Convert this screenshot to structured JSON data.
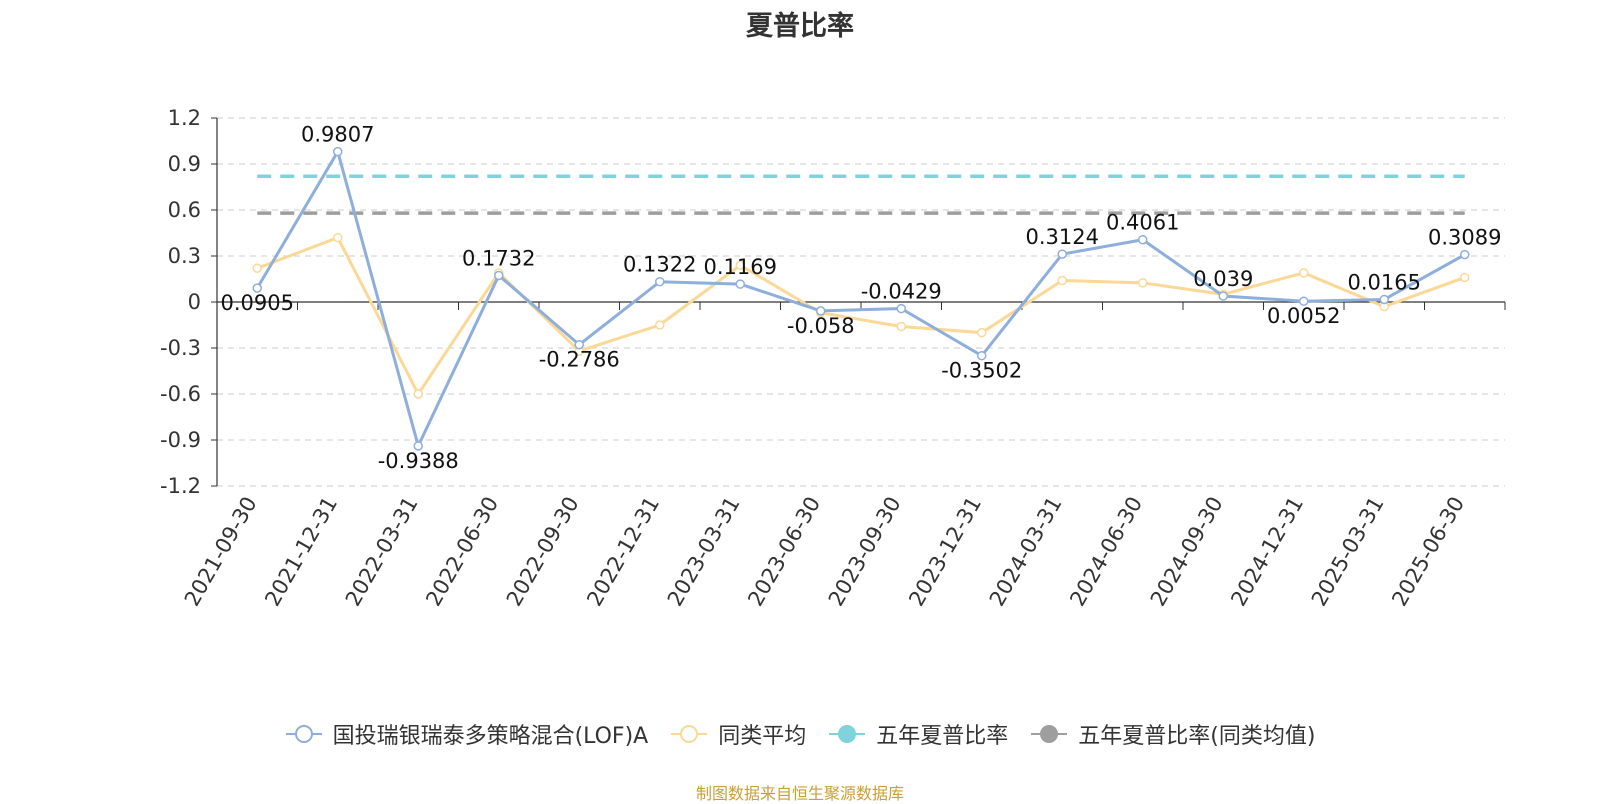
{
  "title": "夏普比率",
  "source_text": "制图数据来自恒生聚源数据库",
  "colors": {
    "fund": "#8eaedc",
    "avg": "#fbd896",
    "five_year": "#7fd3dc",
    "five_year_avg": "#9e9e9e",
    "source": "#c9a034"
  },
  "legend": [
    {
      "label": "国投瑞银瑞泰多策略混合(LOF)A",
      "color": "#8eaedc",
      "marker": "hollow-circle"
    },
    {
      "label": "同类平均",
      "color": "#fbd896",
      "marker": "hollow-circle"
    },
    {
      "label": "五年夏普比率",
      "color": "#7fd3dc",
      "marker": "filled-circle"
    },
    {
      "label": "五年夏普比率(同类均值)",
      "color": "#9e9e9e",
      "marker": "filled-circle"
    }
  ],
  "chart_data": {
    "type": "line",
    "title": "夏普比率",
    "categories": [
      "2021-09-30",
      "2021-12-31",
      "2022-03-31",
      "2022-06-30",
      "2022-09-30",
      "2022-12-31",
      "2023-03-31",
      "2023-06-30",
      "2023-09-30",
      "2023-12-31",
      "2024-03-31",
      "2024-06-30",
      "2024-09-30",
      "2024-12-31",
      "2025-03-31",
      "2025-06-30"
    ],
    "series": [
      {
        "name": "国投瑞银瑞泰多策略混合(LOF)A",
        "values": [
          0.0905,
          0.9807,
          -0.9388,
          0.1732,
          -0.2786,
          0.1322,
          0.1169,
          -0.058,
          -0.0429,
          -0.3502,
          0.3124,
          0.4061,
          0.039,
          0.0052,
          0.0165,
          0.3089
        ],
        "labels": [
          "0.0905",
          "0.9807",
          "-0.9388",
          "0.1732",
          "-0.2786",
          "0.1322",
          "0.1169",
          "-0.058",
          "-0.0429",
          "-0.3502",
          "0.3124",
          "0.4061",
          "0.039",
          "0.0052",
          "0.0165",
          "0.3089"
        ]
      },
      {
        "name": "同类平均",
        "values": [
          0.22,
          0.42,
          -0.6,
          0.19,
          -0.32,
          -0.15,
          0.24,
          -0.07,
          -0.16,
          -0.2,
          0.14,
          0.125,
          0.05,
          0.19,
          -0.03,
          0.16
        ]
      },
      {
        "name": "五年夏普比率",
        "values": [
          0.82,
          0.82,
          0.82,
          0.82,
          0.82,
          0.82,
          0.82,
          0.82,
          0.82,
          0.82,
          0.82,
          0.82,
          0.82,
          0.82,
          0.82,
          0.82
        ],
        "style": "dashed"
      },
      {
        "name": "五年夏普比率(同类均值)",
        "values": [
          0.58,
          0.58,
          0.58,
          0.58,
          0.58,
          0.58,
          0.58,
          0.58,
          0.58,
          0.58,
          0.58,
          0.58,
          0.58,
          0.58,
          0.58,
          0.58
        ],
        "style": "dashed"
      }
    ],
    "yticks": [
      "1.2",
      "0.9",
      "0.6",
      "0.3",
      "0",
      "-0.3",
      "-0.6",
      "-0.9",
      "-1.2"
    ],
    "ylim": [
      -1.2,
      1.2
    ],
    "grid": true,
    "legend_position": "bottom"
  }
}
